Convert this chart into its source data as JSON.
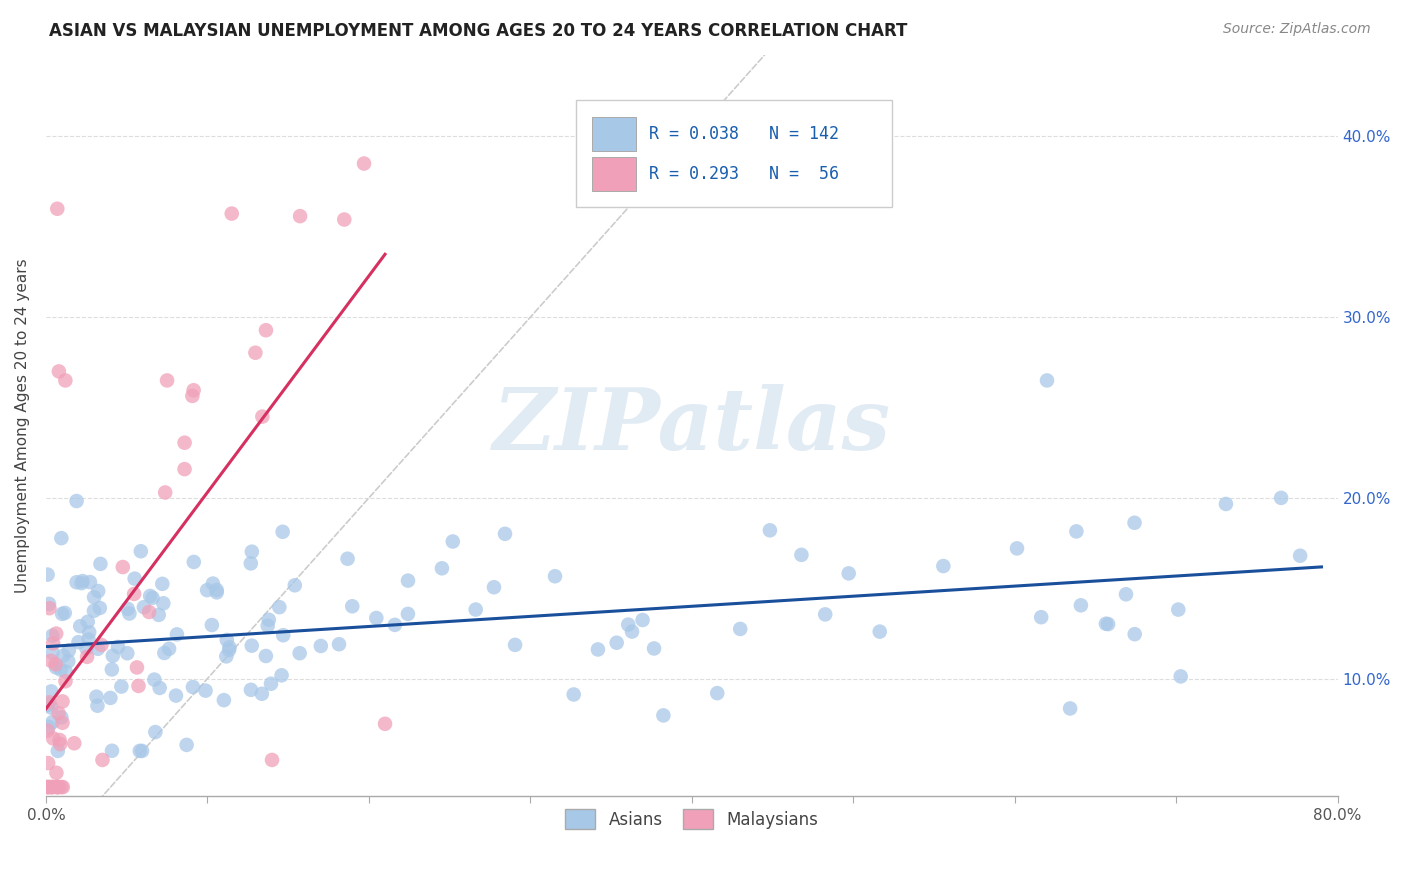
{
  "title": "ASIAN VS MALAYSIAN UNEMPLOYMENT AMONG AGES 20 TO 24 YEARS CORRELATION CHART",
  "source": "Source: ZipAtlas.com",
  "ylabel": "Unemployment Among Ages 20 to 24 years",
  "yticks": [
    "10.0%",
    "20.0%",
    "30.0%",
    "40.0%"
  ],
  "ytick_vals": [
    0.1,
    0.2,
    0.3,
    0.4
  ],
  "xlim": [
    0.0,
    0.8
  ],
  "ylim": [
    0.035,
    0.445
  ],
  "watermark": "ZIPatlas",
  "legend_asian_r": "0.038",
  "legend_asian_n": "142",
  "legend_malay_r": "0.293",
  "legend_malay_n": "56",
  "asian_color": "#a8c8e8",
  "asian_line_color": "#1a4f9c",
  "malay_color": "#f0a0b8",
  "malay_line_color": "#d63060",
  "diagonal_color": "#cccccc",
  "bg_color": "#ffffff",
  "title_fontsize": 12,
  "source_fontsize": 10,
  "seed": 99
}
